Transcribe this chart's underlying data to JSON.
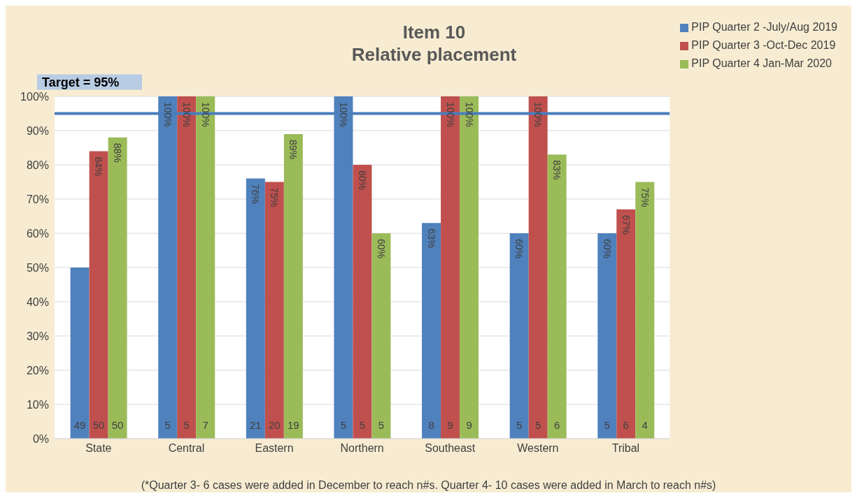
{
  "chart_data": {
    "type": "bar",
    "title": "Item 10\nRelative placement",
    "categories": [
      "State",
      "Central",
      "Eastern",
      "Northern",
      "Southeast",
      "Western",
      "Tribal"
    ],
    "series": [
      {
        "name": "PIP Quarter 2 -July/Aug 2019",
        "color": "#4f81bd",
        "values": [
          50,
          100,
          76,
          100,
          63,
          60,
          60
        ],
        "value_labels": [
          null,
          "100%",
          "76%",
          "100%",
          "63%",
          "60%",
          "60%"
        ]
      },
      {
        "name": "PIP Quarter 3 -Oct-Dec 2019",
        "color": "#c0504d",
        "values": [
          84,
          100,
          75,
          80,
          100,
          100,
          67
        ],
        "value_labels": [
          "84%",
          "100%",
          "75%",
          "80%",
          "100%",
          "100%",
          "67%"
        ]
      },
      {
        "name": "PIP Quarter 4 Jan-Mar 2020",
        "color": "#9bbb59",
        "values": [
          88,
          100,
          89,
          60,
          100,
          83,
          75
        ],
        "value_labels": [
          "88%",
          "100%",
          "89%",
          "60%",
          "100%",
          "83%",
          "75%"
        ]
      }
    ],
    "ylim": [
      0,
      100
    ],
    "yticks": [
      {
        "value": 0,
        "label": "0%"
      },
      {
        "value": 10,
        "label": "10%"
      },
      {
        "value": 20,
        "label": "20%"
      },
      {
        "value": 30,
        "label": "30%"
      },
      {
        "value": 40,
        "label": "40%"
      },
      {
        "value": 50,
        "label": "50%"
      },
      {
        "value": 60,
        "label": "60%"
      },
      {
        "value": 70,
        "label": "70%"
      },
      {
        "value": 80,
        "label": "80%"
      },
      {
        "value": 90,
        "label": "90%"
      },
      {
        "value": 100,
        "label": "100%"
      }
    ],
    "grid": "y",
    "legend": "top right",
    "ref_lines": [
      {
        "axis": "y",
        "value": 95,
        "label": "Target = 95%",
        "color": "#4a7ebb"
      }
    ],
    "annotations": [
      {
        "text": "49",
        "x": "State",
        "y": 0
      },
      {
        "text": "50",
        "x": "State",
        "y": 0
      },
      {
        "text": "50",
        "x": "State",
        "y": 0
      },
      {
        "text": "5",
        "x": "Central",
        "y": 0
      },
      {
        "text": "5",
        "x": "Central",
        "y": 0
      },
      {
        "text": "7",
        "x": "Central",
        "y": 0
      },
      {
        "text": "21",
        "x": "Eastern",
        "y": 0
      },
      {
        "text": "20",
        "x": "Eastern",
        "y": 0
      },
      {
        "text": "19",
        "x": "Eastern",
        "y": 0
      },
      {
        "text": "5",
        "x": "Northern",
        "y": 0
      },
      {
        "text": "5",
        "x": "Northern",
        "y": 0
      },
      {
        "text": "5",
        "x": "Northern",
        "y": 0
      },
      {
        "text": "8",
        "x": "Southeast",
        "y": 0
      },
      {
        "text": "9",
        "x": "Southeast",
        "y": 0
      },
      {
        "text": "9",
        "x": "Southeast",
        "y": 0
      },
      {
        "text": "5",
        "x": "Western",
        "y": 0
      },
      {
        "text": "5",
        "x": "Western",
        "y": 0
      },
      {
        "text": "6",
        "x": "Western",
        "y": 0
      },
      {
        "text": "5",
        "x": "Tribal",
        "y": 0
      },
      {
        "text": "6",
        "x": "Tribal",
        "y": 0
      },
      {
        "text": "4",
        "x": "Tribal",
        "y": 0
      },
      "(*Quarter 3- 6 cases were added in December to reach n#s. Quarter 4- 10 cases were added in March to reach n#s)"
    ]
  }
}
